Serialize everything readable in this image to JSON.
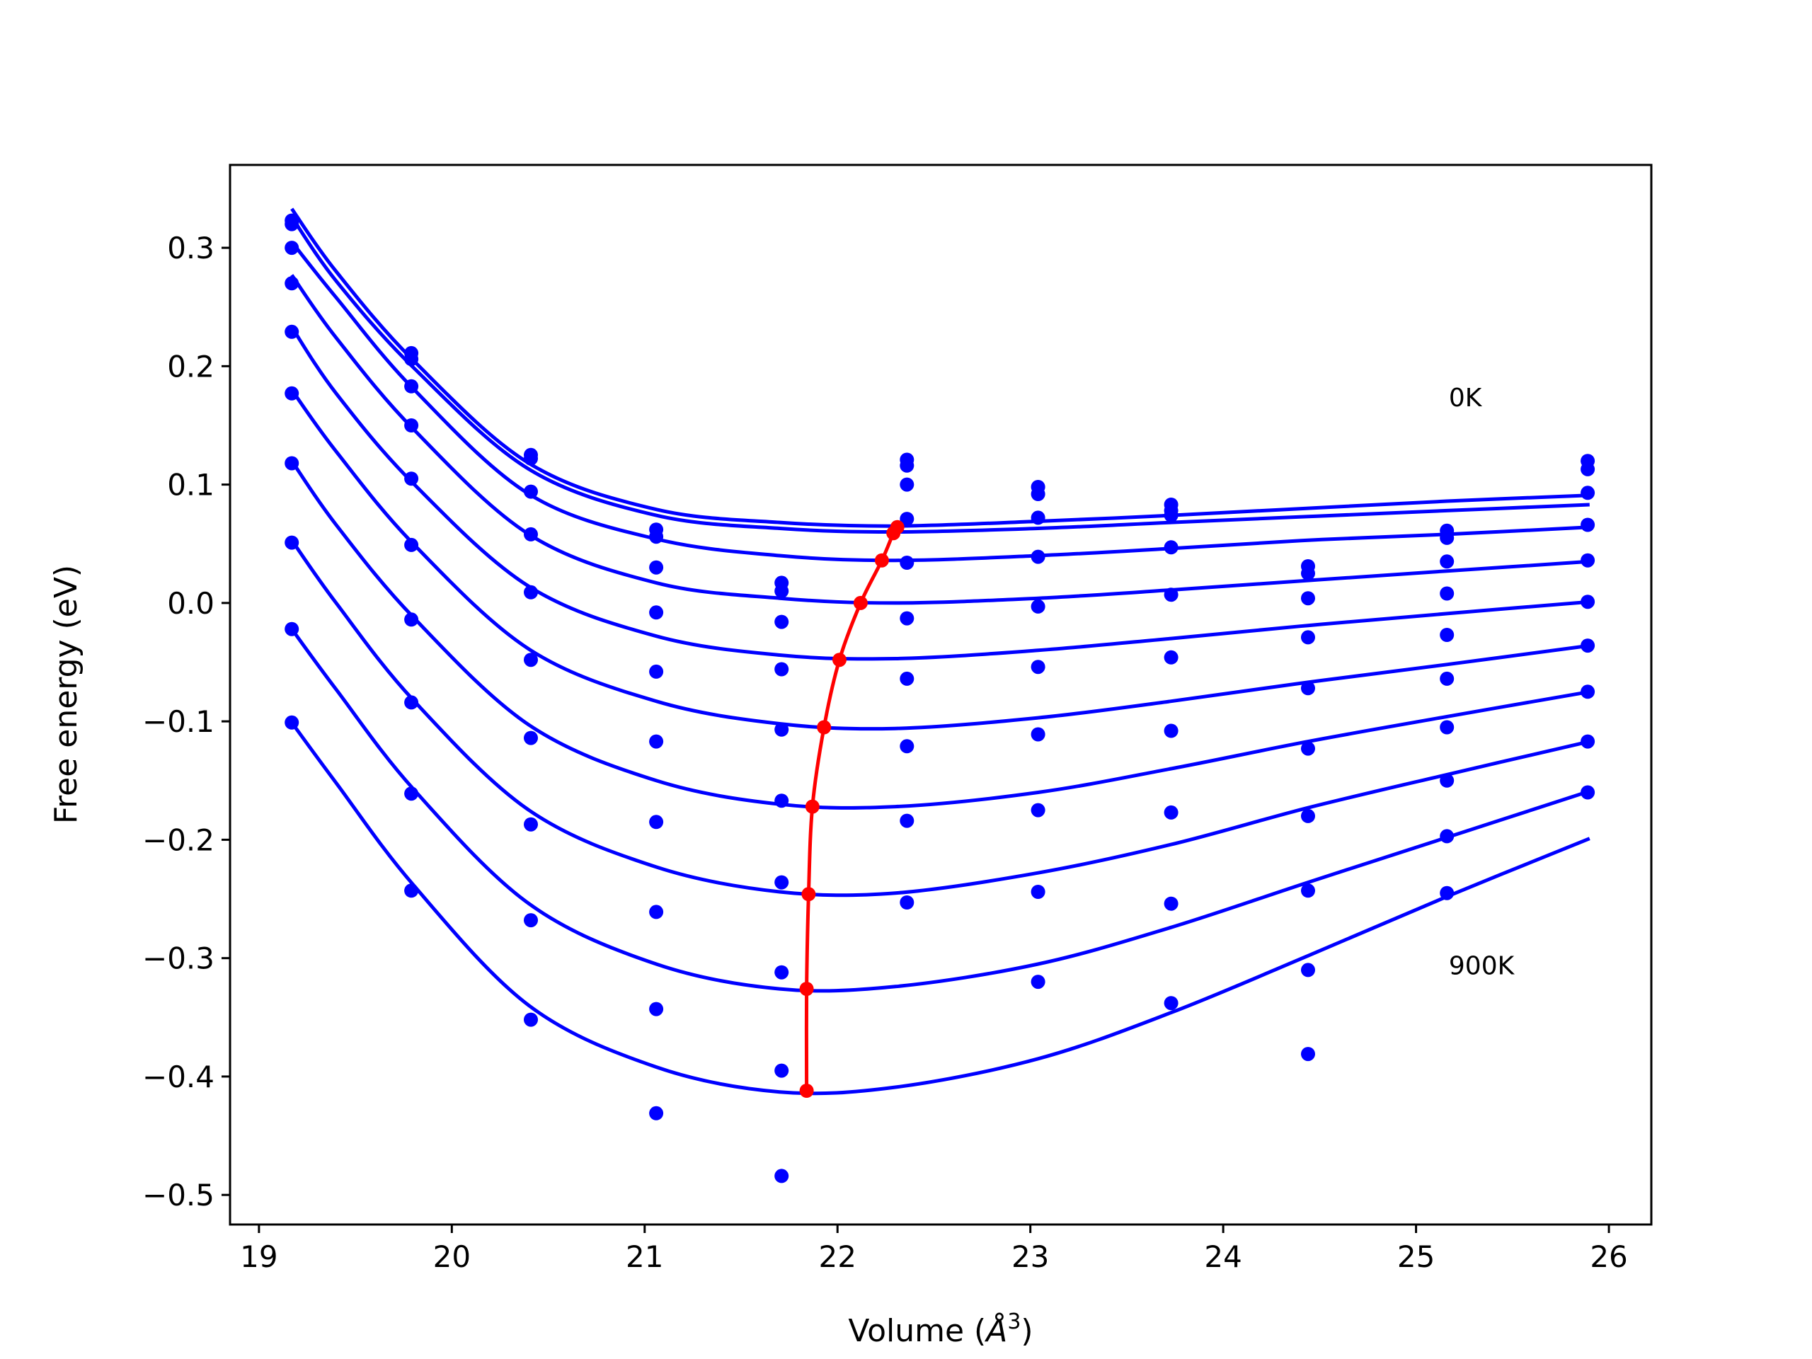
{
  "chart_data": {
    "type": "line",
    "xlabel": "Volume (",
    "xlabel_symbol": "Å",
    "xlabel_exponent": "3",
    "xlabel_close": ")",
    "ylabel": "Free energy (eV)",
    "xlim": [
      18.85,
      26.22
    ],
    "ylim": [
      -0.525,
      0.37
    ],
    "xticks": [
      19,
      20,
      21,
      22,
      23,
      24,
      25,
      26
    ],
    "xtick_labels": [
      "19",
      "20",
      "21",
      "22",
      "23",
      "24",
      "25",
      "26"
    ],
    "yticks": [
      -0.5,
      -0.4,
      -0.3,
      -0.2,
      -0.1,
      0.0,
      0.1,
      0.2,
      0.3
    ],
    "ytick_labels": [
      "−0.5",
      "−0.4",
      "−0.3",
      "−0.2",
      "−0.1",
      "0.0",
      "0.1",
      "0.2",
      "0.3"
    ],
    "grid": false,
    "annotations": [
      {
        "text": "0K",
        "x": 25.17,
        "y": 0.174
      },
      {
        "text": "900K",
        "x": 25.17,
        "y": -0.306
      }
    ],
    "point_x": [
      19.17,
      19.79,
      20.41,
      21.06,
      21.71,
      22.36,
      23.04,
      23.73,
      24.44,
      25.16,
      25.89
    ],
    "points": [
      [
        0.323,
        0.211,
        0.125,
        0.062,
        0.017,
        0.121,
        0.098,
        0.083,
        0.031,
        0.061,
        0.12
      ],
      [
        0.32,
        0.206,
        0.122,
        0.056,
        0.01,
        0.116,
        0.092,
        0.078,
        0.025,
        0.055,
        0.113
      ],
      [
        0.3,
        0.183,
        0.094,
        0.03,
        -0.016,
        0.1,
        0.072,
        0.074,
        0.004,
        0.035,
        0.093
      ],
      [
        0.27,
        0.15,
        0.058,
        -0.008,
        -0.056,
        0.071,
        0.039,
        0.047,
        -0.029,
        0.008,
        0.066
      ],
      [
        0.229,
        0.105,
        0.009,
        -0.058,
        -0.107,
        0.034,
        -0.003,
        0.007,
        -0.072,
        -0.027,
        0.036
      ],
      [
        0.177,
        0.049,
        -0.048,
        -0.117,
        -0.167,
        -0.013,
        -0.054,
        -0.046,
        -0.123,
        -0.064,
        0.001
      ],
      [
        0.118,
        -0.014,
        -0.114,
        -0.185,
        -0.236,
        -0.064,
        -0.111,
        -0.108,
        -0.18,
        -0.105,
        -0.036
      ],
      [
        0.051,
        -0.084,
        -0.187,
        -0.261,
        -0.312,
        -0.121,
        -0.175,
        -0.177,
        -0.243,
        -0.15,
        -0.075
      ],
      [
        -0.022,
        -0.161,
        -0.268,
        -0.343,
        -0.395,
        -0.184,
        -0.244,
        -0.254,
        -0.31,
        -0.197,
        -0.117
      ],
      [
        -0.101,
        -0.243,
        -0.352,
        -0.431,
        -0.484,
        -0.253,
        -0.32,
        -0.338,
        -0.381,
        -0.245,
        -0.16
      ]
    ],
    "fit_curves": [
      {
        "x": [
          19.17,
          19.4,
          19.8,
          20.4,
          21.06,
          21.7,
          22.3,
          23.04,
          23.73,
          24.44,
          25.16,
          25.9
        ],
        "y": [
          0.333,
          0.28,
          0.205,
          0.118,
          0.079,
          0.068,
          0.065,
          0.069,
          0.074,
          0.08,
          0.086,
          0.091
        ]
      },
      {
        "x": [
          19.17,
          19.4,
          19.8,
          20.4,
          21.06,
          21.7,
          22.3,
          23.04,
          23.73,
          24.44,
          25.16,
          25.9
        ],
        "y": [
          0.326,
          0.272,
          0.199,
          0.113,
          0.074,
          0.063,
          0.06,
          0.063,
          0.068,
          0.073,
          0.078,
          0.083
        ]
      },
      {
        "x": [
          19.17,
          19.4,
          19.8,
          20.4,
          21.06,
          21.7,
          22.3,
          23.04,
          23.73,
          24.44,
          25.16,
          25.9
        ],
        "y": [
          0.305,
          0.258,
          0.181,
          0.092,
          0.054,
          0.04,
          0.036,
          0.04,
          0.046,
          0.053,
          0.058,
          0.064
        ]
      },
      {
        "x": [
          19.17,
          19.4,
          19.8,
          20.4,
          21.06,
          21.7,
          22.3,
          23.04,
          23.73,
          24.44,
          25.16,
          25.9
        ],
        "y": [
          0.277,
          0.224,
          0.147,
          0.058,
          0.017,
          0.004,
          0.0,
          0.004,
          0.011,
          0.019,
          0.027,
          0.035
        ]
      },
      {
        "x": [
          19.17,
          19.4,
          19.8,
          20.4,
          21.06,
          21.7,
          22.3,
          23.04,
          23.73,
          24.44,
          25.16,
          25.9
        ],
        "y": [
          0.233,
          0.177,
          0.101,
          0.014,
          -0.028,
          -0.044,
          -0.047,
          -0.04,
          -0.03,
          -0.019,
          -0.009,
          0.001
        ]
      },
      {
        "x": [
          19.17,
          19.4,
          19.8,
          20.4,
          21.06,
          21.7,
          22.3,
          23.04,
          23.73,
          24.44,
          25.16,
          25.9
        ],
        "y": [
          0.18,
          0.128,
          0.05,
          -0.039,
          -0.083,
          -0.102,
          -0.106,
          -0.097,
          -0.083,
          -0.067,
          -0.052,
          -0.036
        ]
      },
      {
        "x": [
          19.17,
          19.4,
          19.8,
          20.4,
          21.06,
          21.7,
          22.3,
          23.04,
          23.73,
          24.44,
          25.16,
          25.9
        ],
        "y": [
          0.12,
          0.066,
          -0.012,
          -0.103,
          -0.15,
          -0.17,
          -0.172,
          -0.16,
          -0.14,
          -0.117,
          -0.096,
          -0.075
        ]
      },
      {
        "x": [
          19.17,
          19.4,
          19.8,
          20.4,
          21.06,
          21.7,
          22.3,
          23.04,
          23.73,
          24.44,
          25.16,
          25.9
        ],
        "y": [
          0.053,
          0.0,
          -0.082,
          -0.175,
          -0.223,
          -0.244,
          -0.245,
          -0.228,
          -0.204,
          -0.173,
          -0.145,
          -0.117
        ]
      },
      {
        "x": [
          19.17,
          19.4,
          19.8,
          20.4,
          21.06,
          21.7,
          22.3,
          23.04,
          23.73,
          24.44,
          25.16,
          25.9
        ],
        "y": [
          -0.022,
          -0.073,
          -0.157,
          -0.254,
          -0.305,
          -0.326,
          -0.324,
          -0.305,
          -0.274,
          -0.236,
          -0.198,
          -0.159
        ]
      },
      {
        "x": [
          19.17,
          19.4,
          19.8,
          20.4,
          21.06,
          21.7,
          22.3,
          23.04,
          23.73,
          24.44,
          25.16,
          25.9
        ],
        "y": [
          -0.101,
          -0.152,
          -0.238,
          -0.34,
          -0.392,
          -0.413,
          -0.409,
          -0.385,
          -0.346,
          -0.298,
          -0.248,
          -0.199
        ]
      }
    ],
    "minima_line": {
      "x": [
        22.31,
        22.29,
        22.23,
        22.12,
        22.01,
        21.93,
        21.87,
        21.85,
        21.84,
        21.84
      ],
      "y": [
        0.064,
        0.059,
        0.036,
        0.0,
        -0.048,
        -0.105,
        -0.172,
        -0.246,
        -0.326,
        -0.412
      ]
    },
    "colors": {
      "curve": "#0000ff",
      "points": "#0000ff",
      "minima": "#ff0000"
    }
  }
}
